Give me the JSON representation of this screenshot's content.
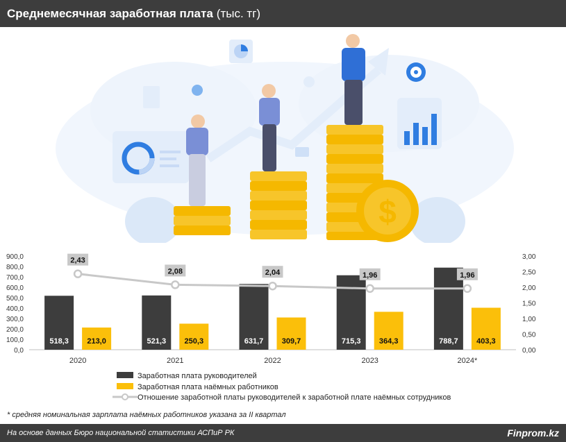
{
  "header": {
    "title": "Среднемесячная заработная плата",
    "unit": "(тыс. тг)"
  },
  "colors": {
    "managers": "#3d3d3d",
    "employees": "#fbbf0a",
    "ratio_line": "#c8c8c8",
    "label_box": "#c8c8c8",
    "header_bg": "#3d3d3d"
  },
  "chart_data": {
    "type": "bar",
    "categories": [
      "2020",
      "2021",
      "2022",
      "2023",
      "2024*"
    ],
    "series": [
      {
        "name": "Заработная плата руководителей",
        "values": [
          518.3,
          521.3,
          631.7,
          715.3,
          788.7
        ],
        "labels": [
          "518,3",
          "521,3",
          "631,7",
          "715,3",
          "788,7"
        ]
      },
      {
        "name": "Заработная плата наёмных работников",
        "values": [
          213.0,
          250.3,
          309.7,
          364.3,
          403.3
        ],
        "labels": [
          "213,0",
          "250,3",
          "309,7",
          "364,3",
          "403,3"
        ]
      }
    ],
    "line_series": {
      "name": "Отношение заработной платы руководителей к заработной плате наёмных сотрудников",
      "values": [
        2.43,
        2.08,
        2.04,
        1.96,
        1.96
      ],
      "labels": [
        "2,43",
        "2,08",
        "2,04",
        "1,96",
        "1,96"
      ]
    },
    "ylim": [
      0,
      900
    ],
    "y2lim": [
      0,
      3
    ],
    "y_ticks": [
      "0,0",
      "100,0",
      "200,0",
      "300,0",
      "400,0",
      "500,0",
      "600,0",
      "700,0",
      "800,0",
      "900,0"
    ],
    "y2_ticks": [
      "0,00",
      "0,50",
      "1,00",
      "1,50",
      "2,00",
      "2,50",
      "3,00"
    ],
    "legend_position": "bottom"
  },
  "footnote": "* средняя номинальная зарплата наёмных работников указана за II квартал",
  "footer": {
    "source": "На основе данных Бюро национальной статистики АСПиР РК",
    "brand": "Finprom.kz"
  }
}
